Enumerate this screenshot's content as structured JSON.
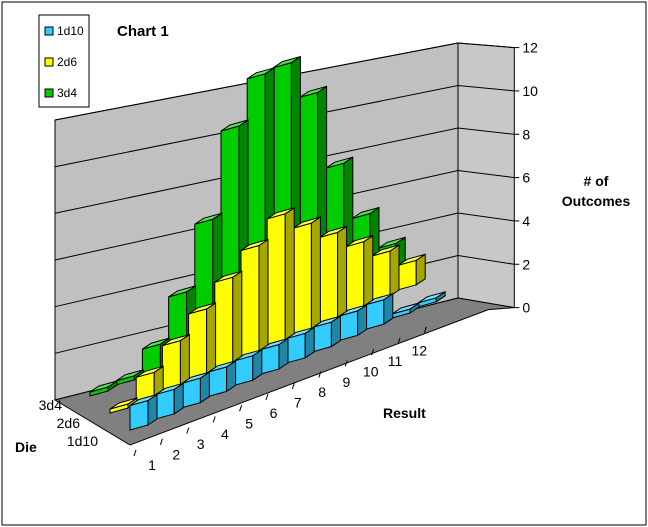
{
  "chart_data": {
    "type": "bar",
    "title": "Chart 1",
    "xlabel": "Result",
    "ylabel": "# of Outcomes",
    "zlabel": "Die",
    "categories": [
      "1",
      "2",
      "3",
      "4",
      "5",
      "6",
      "7",
      "8",
      "9",
      "10",
      "11",
      "12"
    ],
    "ylim": [
      0,
      12
    ],
    "yticks": [
      "0",
      "2",
      "4",
      "6",
      "8",
      "10",
      "12"
    ],
    "legend_position": "top-left",
    "series": [
      {
        "name": "1d10",
        "color": "#33ccff",
        "values": [
          1,
          1,
          1,
          1,
          1,
          1,
          1,
          1,
          1,
          1,
          0,
          0
        ]
      },
      {
        "name": "2d6",
        "color": "#ffff00",
        "values": [
          0,
          1,
          2,
          3,
          4,
          5,
          6,
          5,
          4,
          3,
          2,
          1
        ]
      },
      {
        "name": "3d4",
        "color": "#00cc00",
        "values": [
          0,
          0,
          1,
          3,
          6,
          10,
          12,
          12,
          10,
          6,
          3,
          1
        ]
      }
    ]
  }
}
